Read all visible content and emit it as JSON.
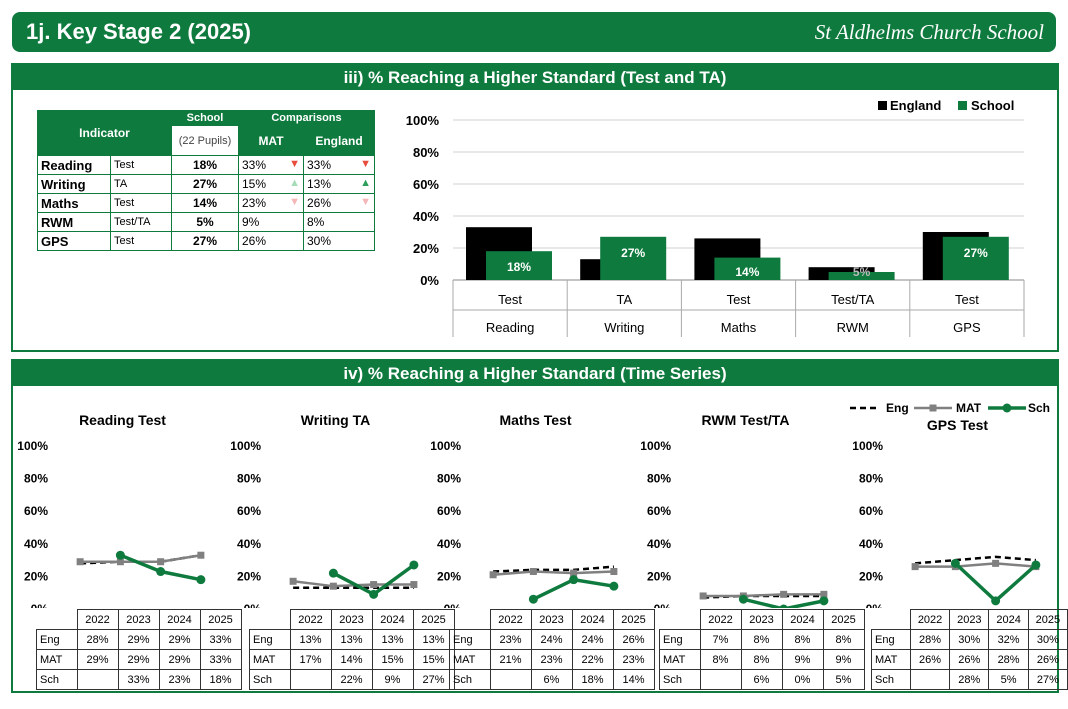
{
  "header": {
    "title": "1j. Key Stage 2 (2025)",
    "school": "St Aldhelms Church School"
  },
  "colors": {
    "green": "#0f7a3e",
    "england": "#000000",
    "mat": "#808080",
    "down": "#e74c3c",
    "down_light": "#f4b6b6",
    "up": "#2e9e5b",
    "up_light": "#a6dcb7"
  },
  "panel1": {
    "title": "iii) % Reaching a Higher Standard (Test and TA)",
    "table": {
      "indicator_header": "Indicator",
      "school_header": "School",
      "pupils": "(22 Pupils)",
      "comparisons_header": "Comparisons",
      "mat_header": "MAT",
      "england_header": "England",
      "rows": [
        {
          "name": "Reading",
          "type": "Test",
          "school": "18%",
          "mat": "33%",
          "mat_arrow": "down",
          "eng": "33%",
          "eng_arrow": "down"
        },
        {
          "name": "Writing",
          "type": "TA",
          "school": "27%",
          "mat": "15%",
          "mat_arrow": "up_light",
          "eng": "13%",
          "eng_arrow": "up"
        },
        {
          "name": "Maths",
          "type": "Test",
          "school": "14%",
          "mat": "23%",
          "mat_arrow": "down_light",
          "eng": "26%",
          "eng_arrow": "down_light"
        },
        {
          "name": "RWM",
          "type": "Test/TA",
          "school": "5%",
          "mat": "9%",
          "mat_arrow": "",
          "eng": "8%",
          "eng_arrow": ""
        },
        {
          "name": "GPS",
          "type": "Test",
          "school": "27%",
          "mat": "26%",
          "mat_arrow": "",
          "eng": "30%",
          "eng_arrow": ""
        }
      ]
    }
  },
  "panel2": {
    "title": "iv) % Reaching a Higher Standard (Time Series)"
  },
  "chart_data": [
    {
      "type": "bar",
      "categories": [
        [
          "Test",
          "Reading"
        ],
        [
          "TA",
          "Writing"
        ],
        [
          "Test",
          "Maths"
        ],
        [
          "Test/TA",
          "RWM"
        ],
        [
          "Test",
          "GPS"
        ]
      ],
      "series": [
        {
          "name": "England",
          "values": [
            33,
            13,
            26,
            8,
            30
          ]
        },
        {
          "name": "School",
          "values": [
            18,
            27,
            14,
            5,
            27
          ]
        }
      ],
      "data_labels": [
        "18%",
        "27%",
        "14%",
        "5%",
        "27%"
      ],
      "y_ticks": [
        "0%",
        "20%",
        "40%",
        "60%",
        "80%",
        "100%"
      ],
      "ylim": [
        0,
        100
      ],
      "legend": [
        "England",
        "School"
      ]
    },
    {
      "type": "line",
      "title": "Reading Test",
      "years": [
        "2022",
        "2023",
        "2024",
        "2025"
      ],
      "series": [
        {
          "name": "Eng",
          "values": [
            28,
            29,
            29,
            33
          ],
          "labels": [
            "28%",
            "29%",
            "29%",
            "33%"
          ]
        },
        {
          "name": "MAT",
          "values": [
            29,
            29,
            29,
            33
          ],
          "labels": [
            "29%",
            "29%",
            "29%",
            "33%"
          ]
        },
        {
          "name": "Sch",
          "values": [
            null,
            33,
            23,
            18
          ],
          "labels": [
            "",
            "33%",
            "23%",
            "18%"
          ]
        }
      ],
      "ylim": [
        0,
        100
      ]
    },
    {
      "type": "line",
      "title": "Writing TA",
      "years": [
        "2022",
        "2023",
        "2024",
        "2025"
      ],
      "series": [
        {
          "name": "Eng",
          "values": [
            13,
            13,
            13,
            13
          ],
          "labels": [
            "13%",
            "13%",
            "13%",
            "13%"
          ]
        },
        {
          "name": "MAT",
          "values": [
            17,
            14,
            15,
            15
          ],
          "labels": [
            "17%",
            "14%",
            "15%",
            "15%"
          ]
        },
        {
          "name": "Sch",
          "values": [
            null,
            22,
            9,
            27
          ],
          "labels": [
            "",
            "22%",
            "9%",
            "27%"
          ]
        }
      ],
      "ylim": [
        0,
        100
      ]
    },
    {
      "type": "line",
      "title": "Maths Test",
      "years": [
        "2022",
        "2023",
        "2024",
        "2025"
      ],
      "series": [
        {
          "name": "Eng",
          "values": [
            23,
            24,
            24,
            26
          ],
          "labels": [
            "23%",
            "24%",
            "24%",
            "26%"
          ]
        },
        {
          "name": "MAT",
          "values": [
            21,
            23,
            22,
            23
          ],
          "labels": [
            "21%",
            "23%",
            "22%",
            "23%"
          ]
        },
        {
          "name": "Sch",
          "values": [
            null,
            6,
            18,
            14
          ],
          "labels": [
            "",
            "6%",
            "18%",
            "14%"
          ]
        }
      ],
      "ylim": [
        0,
        100
      ]
    },
    {
      "type": "line",
      "title": "RWM Test/TA",
      "years": [
        "2022",
        "2023",
        "2024",
        "2025"
      ],
      "series": [
        {
          "name": "Eng",
          "values": [
            7,
            8,
            8,
            8
          ],
          "labels": [
            "7%",
            "8%",
            "8%",
            "8%"
          ]
        },
        {
          "name": "MAT",
          "values": [
            8,
            8,
            9,
            9
          ],
          "labels": [
            "8%",
            "8%",
            "9%",
            "9%"
          ]
        },
        {
          "name": "Sch",
          "values": [
            null,
            6,
            0,
            5
          ],
          "labels": [
            "",
            "6%",
            "0%",
            "5%"
          ]
        }
      ],
      "ylim": [
        0,
        100
      ]
    },
    {
      "type": "line",
      "title": "GPS Test",
      "years": [
        "2022",
        "2023",
        "2024",
        "2025"
      ],
      "series": [
        {
          "name": "Eng",
          "values": [
            28,
            30,
            32,
            30
          ],
          "labels": [
            "28%",
            "30%",
            "32%",
            "30%"
          ]
        },
        {
          "name": "MAT",
          "values": [
            26,
            26,
            28,
            26
          ],
          "labels": [
            "26%",
            "26%",
            "28%",
            "26%"
          ]
        },
        {
          "name": "Sch",
          "values": [
            null,
            28,
            5,
            27
          ],
          "labels": [
            "",
            "28%",
            "5%",
            "27%"
          ]
        }
      ],
      "ylim": [
        0,
        100
      ],
      "legend": [
        "Eng",
        "MAT",
        "Sch"
      ]
    }
  ]
}
